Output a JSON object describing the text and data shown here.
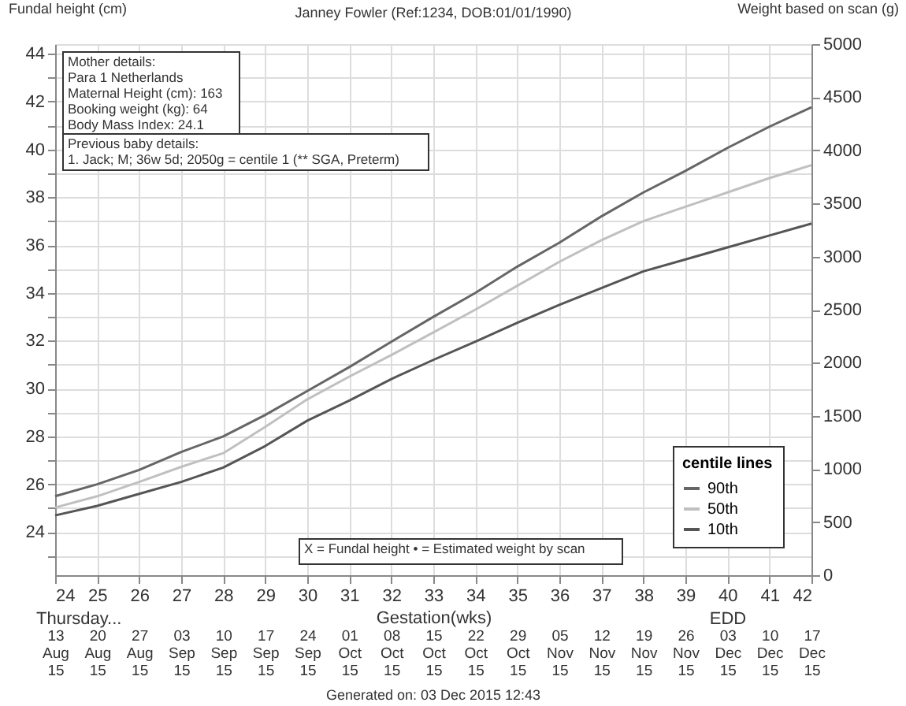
{
  "chart_data": {
    "type": "line",
    "title": "Janney Fowler (Ref:1234, DOB:01/01/1990)",
    "ylabel": "Fundal height (cm)",
    "y2label": "Weight based on scan (g)",
    "xlabel": "Gestation(wks)",
    "legend_title": "centile lines",
    "legend": "bottom right",
    "grid": true,
    "line_style": "solid",
    "marker": "none",
    "x": [
      24,
      25,
      26,
      27,
      28,
      29,
      30,
      31,
      32,
      33,
      34,
      35,
      36,
      37,
      38,
      39,
      40,
      41,
      42
    ],
    "series": [
      {
        "name": "90th",
        "color": "#666666",
        "values": [
          25.5,
          26.0,
          26.6,
          27.35,
          28.0,
          28.9,
          29.9,
          30.9,
          31.96,
          33.0,
          34.0,
          35.1,
          36.1,
          37.2,
          38.2,
          39.1,
          40.06,
          40.95,
          41.76
        ]
      },
      {
        "name": "50th",
        "color": "#c0c0c0",
        "values": [
          25.03,
          25.5,
          26.1,
          26.73,
          27.3,
          28.4,
          29.55,
          30.5,
          31.4,
          32.35,
          33.3,
          34.3,
          35.3,
          36.2,
          37.0,
          37.6,
          38.2,
          38.8,
          39.34
        ]
      },
      {
        "name": "10th",
        "color": "#555555",
        "values": [
          24.7,
          25.1,
          25.6,
          26.1,
          26.7,
          27.6,
          28.66,
          29.5,
          30.4,
          31.2,
          31.96,
          32.75,
          33.5,
          34.2,
          34.9,
          35.4,
          35.9,
          36.4,
          36.9
        ]
      }
    ],
    "xlim": [
      24,
      42
    ],
    "xticks": [
      24,
      25,
      26,
      27,
      28,
      29,
      30,
      31,
      32,
      33,
      34,
      35,
      36,
      37,
      38,
      39,
      40,
      41,
      42
    ],
    "ylim": [
      22.2,
      44.4
    ],
    "yticks": [
      {
        "value": 23,
        "label": null
      },
      24,
      {
        "value": 25,
        "label": null
      },
      26,
      {
        "value": 27,
        "label": null
      },
      28,
      {
        "value": 29,
        "label": null
      },
      30,
      {
        "value": 31,
        "label": null
      },
      32,
      {
        "value": 33,
        "label": null
      },
      34,
      {
        "value": 35,
        "label": null
      },
      36,
      {
        "value": 37,
        "label": null
      },
      38,
      {
        "value": 39,
        "label": null
      },
      40,
      {
        "value": 41,
        "label": null
      },
      42,
      {
        "value": 43,
        "label": null
      },
      44
    ],
    "y2lim": [
      0,
      5000
    ],
    "y2ticks": [
      0,
      500,
      1000,
      1500,
      2000,
      2500,
      3000,
      3500,
      4000,
      4500,
      5000
    ],
    "x2lim": [
      "2015-08-13",
      "2015-12-17"
    ],
    "x2ticks": [
      {
        "value": "2015-08-13",
        "label": "13 Aug 15"
      },
      {
        "value": "2015-08-20",
        "label": "20 Aug 15"
      },
      {
        "value": "2015-08-27",
        "label": "27 Aug 15"
      },
      {
        "value": "2015-09-03",
        "label": "03 Sep 15"
      },
      {
        "value": "2015-09-10",
        "label": "10 Sep 15"
      },
      {
        "value": "2015-09-17",
        "label": "17 Sep 15"
      },
      {
        "value": "2015-09-24",
        "label": "24 Sep 15"
      },
      {
        "value": "2015-10-01",
        "label": "01 Oct 15"
      },
      {
        "value": "2015-10-08",
        "label": "08 Oct 15"
      },
      {
        "value": "2015-10-15",
        "label": "15 Oct 15"
      },
      {
        "value": "2015-10-22",
        "label": "22 Oct 15"
      },
      {
        "value": "2015-10-29",
        "label": "29 Oct 15"
      },
      {
        "value": "2015-11-05",
        "label": "05 Nov 15"
      },
      {
        "value": "2015-11-12",
        "label": "12 Nov 15"
      },
      {
        "value": "2015-11-19",
        "label": "19 Nov 15"
      },
      {
        "value": "2015-11-26",
        "label": "26 Nov 15"
      },
      {
        "value": "2015-12-03",
        "label": "03 Dec 15"
      },
      {
        "value": "2015-12-10",
        "label": "10 Dec 15"
      },
      {
        "value": "2015-12-17",
        "label": "17 Dec 15"
      }
    ],
    "annotations": [
      "Mother details:\nPara 1 Netherlands\nMaternal Height (cm): 163\nBooking weight (kg): 64\nBody Mass Index: 24.1",
      "Previous baby details:\n1. Jack; M; 36w 5d; 2050g = centile 1 (** SGA, Preterm)",
      "X = Fundal height    • = Estimated weight by scan",
      "Thursday...",
      "EDD",
      "Generated on: 03 Dec 2015 12:43"
    ]
  }
}
